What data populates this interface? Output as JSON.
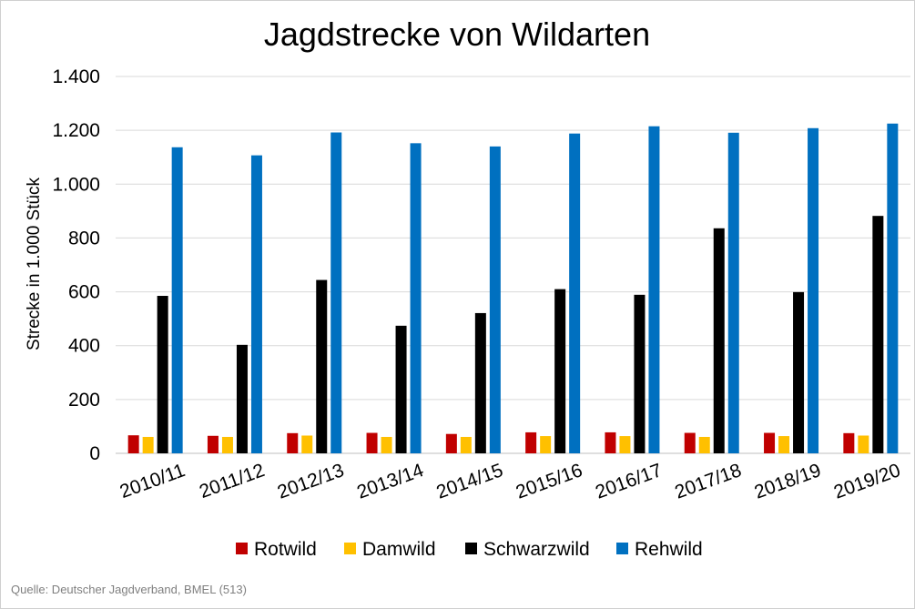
{
  "chart_data": {
    "type": "bar",
    "title": "Jagdstrecke von Wildarten",
    "ylabel": "Strecke in 1.000 Stück",
    "xlabel": "",
    "ylim": [
      0,
      1400
    ],
    "yticks": [
      0,
      200,
      400,
      600,
      800,
      1000,
      1200,
      1400
    ],
    "ytick_labels": [
      "0",
      "200",
      "400",
      "600",
      "800",
      "1.000",
      "1.200",
      "1.400"
    ],
    "grid": true,
    "legend_position": "bottom",
    "categories": [
      "2010/11",
      "2011/12",
      "2012/13",
      "2013/14",
      "2014/15",
      "2015/16",
      "2016/17",
      "2017/18",
      "2018/19",
      "2019/20"
    ],
    "series": [
      {
        "name": "Rotwild",
        "color": "#c00000",
        "values": [
          67,
          65,
          75,
          76,
          72,
          78,
          78,
          76,
          76,
          75
        ]
      },
      {
        "name": "Damwild",
        "color": "#ffc000",
        "values": [
          61,
          61,
          66,
          61,
          61,
          64,
          64,
          61,
          64,
          66
        ]
      },
      {
        "name": "Schwarzwild",
        "color": "#000000",
        "values": [
          585,
          403,
          644,
          474,
          521,
          610,
          589,
          836,
          599,
          882
        ]
      },
      {
        "name": "Rehwild",
        "color": "#0070c0",
        "values": [
          1137,
          1107,
          1192,
          1152,
          1140,
          1188,
          1215,
          1191,
          1208,
          1225
        ]
      }
    ]
  },
  "source_text": "Quelle: Deutscher Jagdverband, BMEL (513)"
}
